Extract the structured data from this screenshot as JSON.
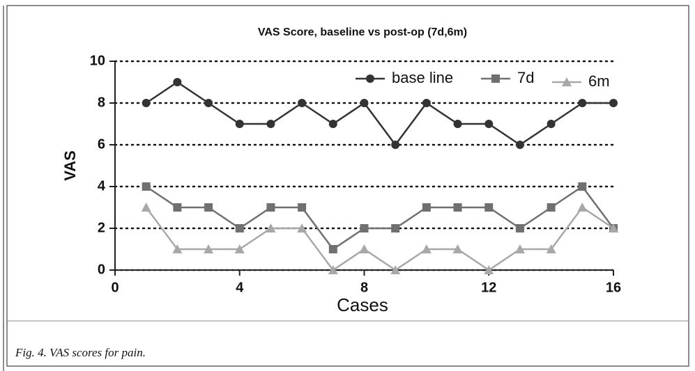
{
  "chart_data": {
    "type": "line",
    "title": "VAS Score, baseline vs post-op (7d,6m)",
    "x_label": "Cases",
    "y_label": "VAS",
    "x": [
      1,
      2,
      3,
      4,
      5,
      6,
      7,
      8,
      9,
      10,
      11,
      12,
      13,
      14,
      15,
      16
    ],
    "series": [
      {
        "name": "base line",
        "color": "#333333",
        "marker": "circle",
        "values": [
          8,
          9,
          8,
          7,
          7,
          8,
          7,
          8,
          6,
          8,
          7,
          7,
          6,
          7,
          8,
          8
        ]
      },
      {
        "name": "7d",
        "color": "#707070",
        "marker": "square",
        "values": [
          4,
          3,
          3,
          2,
          3,
          3,
          1,
          2,
          2,
          3,
          3,
          3,
          2,
          3,
          4,
          2
        ]
      },
      {
        "name": "6m",
        "color": "#a8a8a8",
        "marker": "triangle",
        "values": [
          3,
          1,
          1,
          1,
          2,
          2,
          0,
          1,
          0,
          1,
          1,
          0,
          1,
          1,
          3,
          2
        ]
      }
    ],
    "xlim": [
      0,
      16
    ],
    "xticks": [
      0,
      4,
      8,
      12,
      16
    ],
    "ylim": [
      0,
      10
    ],
    "yticks": [
      0,
      2,
      4,
      6,
      8,
      10
    ],
    "grid": true,
    "legend": "top-right"
  },
  "caption": "Fig. 4. VAS scores for pain."
}
